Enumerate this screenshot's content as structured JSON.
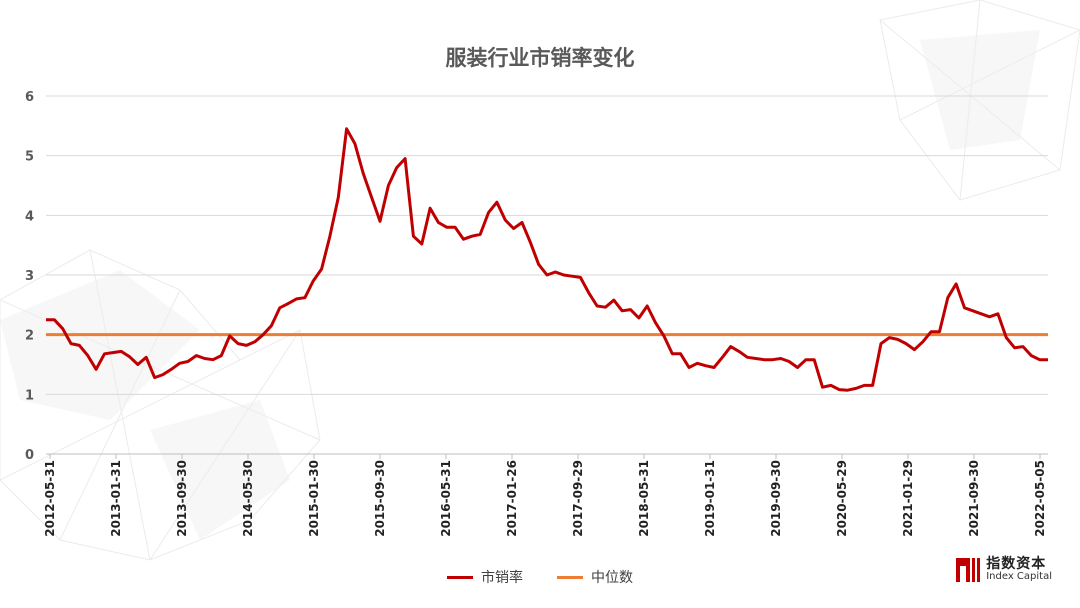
{
  "chart_data": {
    "type": "line",
    "title": "服装行业市销率变化",
    "xlabel": "",
    "ylabel": "",
    "ylim": [
      0,
      6
    ],
    "yticks": [
      "0",
      "1",
      "2",
      "3",
      "4",
      "5",
      "6"
    ],
    "grid": true,
    "legend_position": "bottom",
    "x_tick_labels": [
      "2012-05-31",
      "2013-01-31",
      "2013-09-30",
      "2014-05-30",
      "2015-01-30",
      "2015-09-30",
      "2016-05-31",
      "2017-01-26",
      "2017-09-29",
      "2018-05-31",
      "2019-01-31",
      "2019-09-30",
      "2020-05-29",
      "2021-01-29",
      "2021-09-30",
      "2022-05-05"
    ],
    "series": [
      {
        "name": "市销率",
        "color": "#c00000",
        "values": [
          2.25,
          2.25,
          2.1,
          1.85,
          1.82,
          1.65,
          1.42,
          1.68,
          1.7,
          1.72,
          1.63,
          1.5,
          1.62,
          1.28,
          1.33,
          1.42,
          1.52,
          1.55,
          1.65,
          1.6,
          1.58,
          1.65,
          1.98,
          1.85,
          1.82,
          1.88,
          2.0,
          2.15,
          2.45,
          2.52,
          2.6,
          2.62,
          2.9,
          3.1,
          3.65,
          4.3,
          5.45,
          5.2,
          4.7,
          4.3,
          3.9,
          4.5,
          4.8,
          4.95,
          3.65,
          3.52,
          4.12,
          3.88,
          3.8,
          3.8,
          3.6,
          3.65,
          3.68,
          4.05,
          4.22,
          3.92,
          3.78,
          3.88,
          3.55,
          3.18,
          3.0,
          3.05,
          3.0,
          2.98,
          2.96,
          2.7,
          2.48,
          2.46,
          2.58,
          2.4,
          2.42,
          2.28,
          2.48,
          2.2,
          1.98,
          1.68,
          1.68,
          1.45,
          1.52,
          1.48,
          1.45,
          1.62,
          1.8,
          1.72,
          1.62,
          1.6,
          1.58,
          1.58,
          1.6,
          1.55,
          1.45,
          1.58,
          1.58,
          1.12,
          1.15,
          1.08,
          1.07,
          1.1,
          1.15,
          1.15,
          1.85,
          1.95,
          1.92,
          1.85,
          1.75,
          1.88,
          2.05,
          2.05,
          2.62,
          2.85,
          2.45,
          2.4,
          2.35,
          2.3,
          2.35,
          1.95,
          1.78,
          1.8,
          1.65,
          1.58,
          1.58
        ]
      },
      {
        "name": "中位数",
        "color": "#ed7d31",
        "values": [
          2.0,
          2.0
        ]
      }
    ]
  },
  "logo": {
    "cn": "指数资本",
    "en": "Index Capital"
  }
}
